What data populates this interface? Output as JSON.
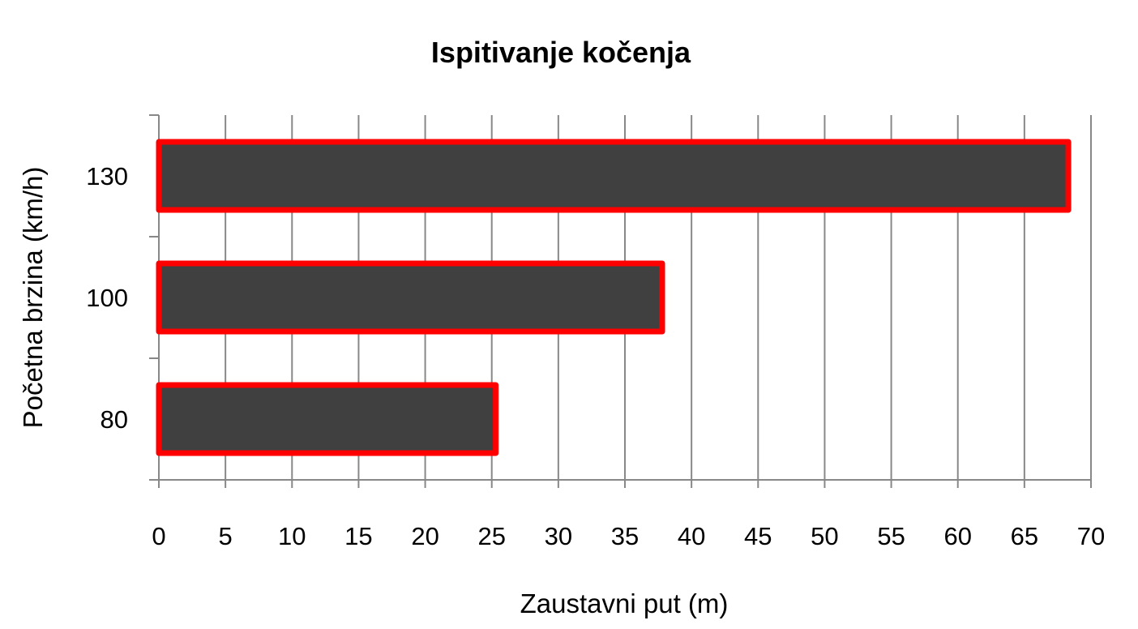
{
  "chart_data": {
    "type": "bar",
    "orientation": "horizontal",
    "title": "Ispitivanje kočenja",
    "xlabel": "Zaustavni put (m)",
    "ylabel": "Početna brzina (km/h)",
    "categories": [
      "80",
      "100",
      "130"
    ],
    "values": [
      25.3,
      37.8,
      68.3
    ],
    "xlim": [
      0,
      70
    ],
    "xticks": [
      "0",
      "5",
      "10",
      "15",
      "20",
      "25",
      "30",
      "35",
      "40",
      "45",
      "50",
      "55",
      "60",
      "65",
      "70"
    ],
    "grid": "vertical",
    "legend": "none",
    "colors": {
      "bar_fill": "#404040",
      "bar_border": "#ff0000",
      "grid": "#888888",
      "axis": "#888888"
    }
  }
}
